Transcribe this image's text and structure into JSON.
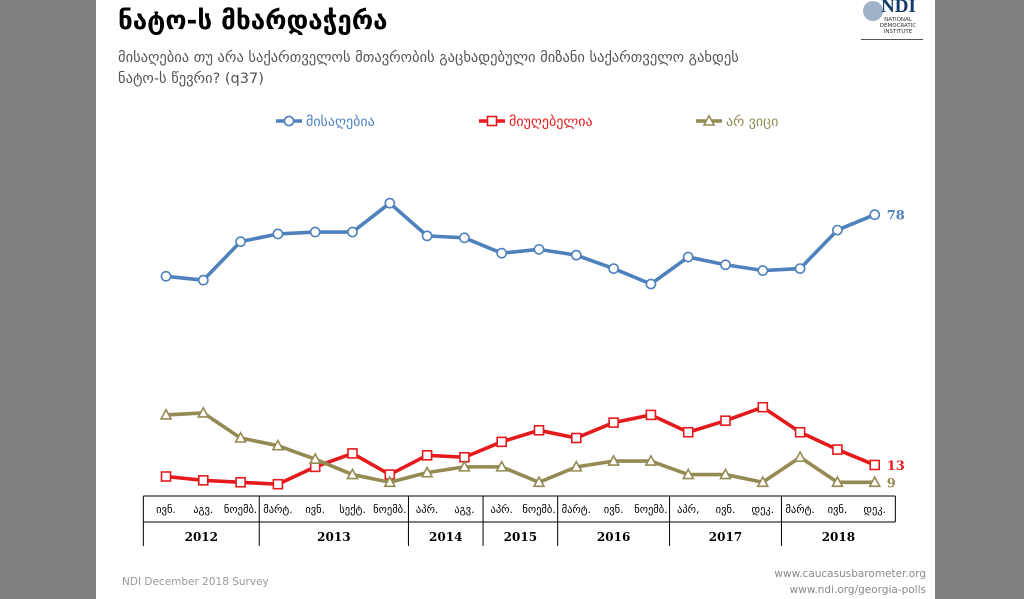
{
  "title": "ნატო-ს მხარდაჭერა",
  "subtitle": "მისაღებია თუ არა საქართველოს მთავრობის გაცხადებული მიზანი საქართველო გახდეს ნატო-ს წევრი? (q37)",
  "logo": {
    "main": "NDI",
    "sub": "NATIONAL DEMOCRATIC INSTITUTE"
  },
  "footer": {
    "survey": "NDI December 2018 Survey",
    "link1": "www.caucasusbarometer.org",
    "link2": "www.ndi.org/georgia-polls"
  },
  "chart_data": {
    "type": "line",
    "title": "ნატო-ს მხარდაჭერა",
    "categories": [
      "ივნ.",
      "აგვ.",
      "ნოემბ.",
      "მარტ.",
      "ივნ.",
      "სექტ.",
      "ნოემბ.",
      "აპრ.",
      "აგვ.",
      "აპრ.",
      "ნოემბ.",
      "მარტ.",
      "ივნ.",
      "ნოემბ.",
      "აპრ,",
      "ივნ.",
      "დეკ.",
      "მარტ.",
      "ივნ.",
      "დეკ."
    ],
    "years": [
      {
        "label": "2012",
        "start": 0,
        "end": 2
      },
      {
        "label": "2013",
        "start": 3,
        "end": 6
      },
      {
        "label": "2014",
        "start": 7,
        "end": 8
      },
      {
        "label": "2015",
        "start": 9,
        "end": 10
      },
      {
        "label": "2016",
        "start": 11,
        "end": 13
      },
      {
        "label": "2017",
        "start": 14,
        "end": 16
      },
      {
        "label": "2018",
        "start": 17,
        "end": 19
      }
    ],
    "ylim": [
      0,
      100
    ],
    "series": [
      {
        "name": "მისაღებია",
        "color": "#4f81bd",
        "marker": "circle",
        "end_label": "78",
        "values": [
          62,
          61,
          71,
          73,
          73.5,
          73.5,
          81,
          72.5,
          72,
          68,
          69,
          67.5,
          64,
          60,
          67,
          65,
          63.5,
          64,
          74,
          78
        ]
      },
      {
        "name": "მიუღებელია",
        "color": "#e41a1c",
        "marker": "square",
        "end_label": "13",
        "values": [
          10,
          9,
          8.5,
          8,
          12.5,
          16,
          10.5,
          15.5,
          15,
          19,
          22,
          20,
          24,
          26,
          21.5,
          24.5,
          28,
          21.5,
          17,
          13
        ]
      },
      {
        "name": "არ ვიცი",
        "color": "#948a54",
        "marker": "triangle",
        "end_label": "9",
        "values": [
          26,
          26.5,
          20,
          18,
          14.5,
          10.5,
          8.5,
          11,
          12.5,
          12.5,
          8.5,
          12.5,
          14,
          14,
          10.5,
          10.5,
          8.5,
          15,
          8.5,
          8.5
        ]
      }
    ]
  }
}
